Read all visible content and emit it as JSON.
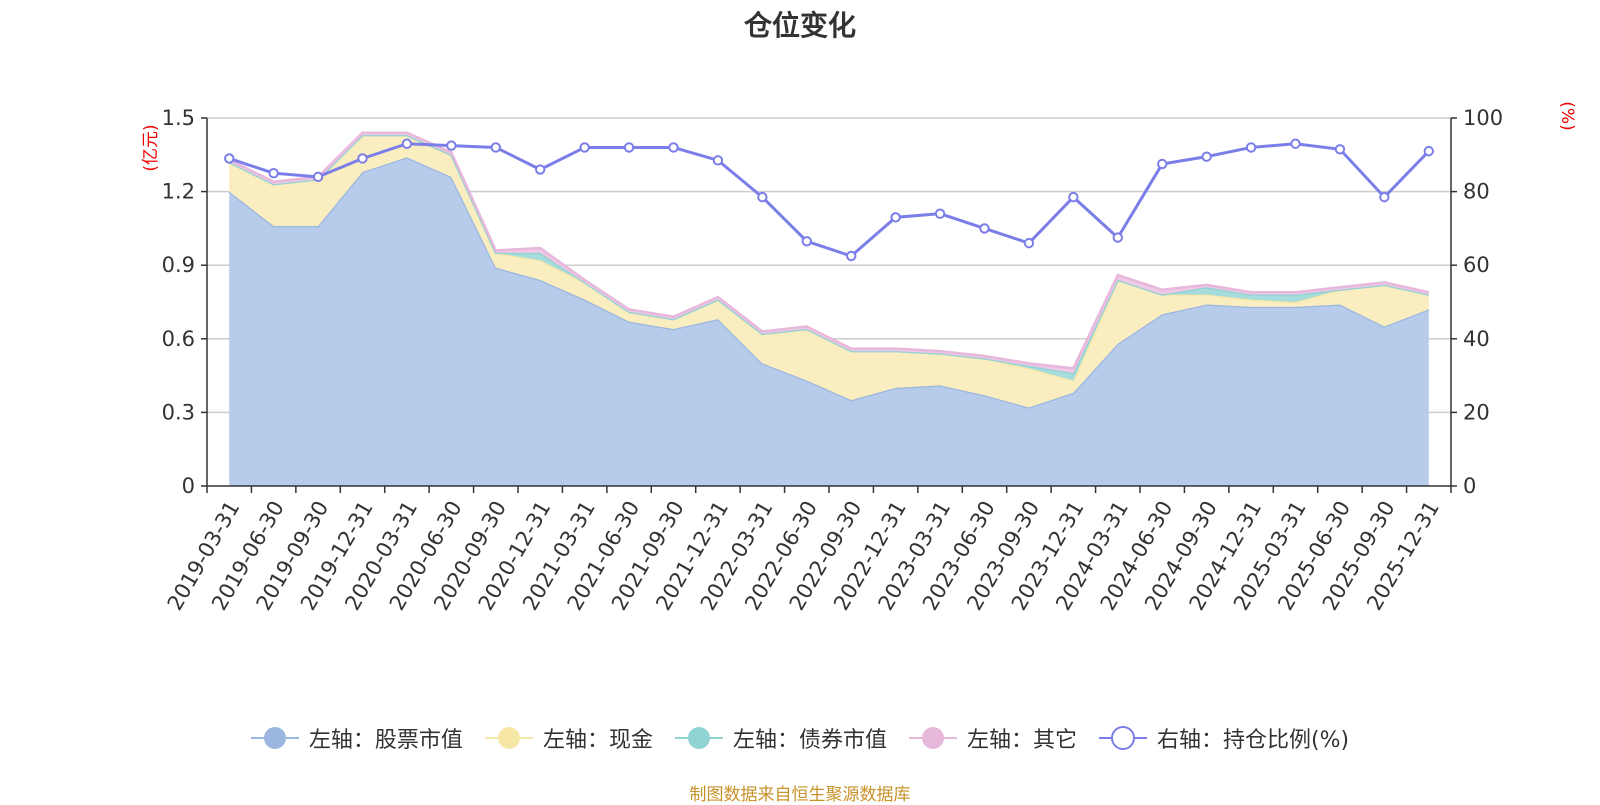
{
  "chart_data": {
    "type": "area",
    "title": "仓位变化",
    "source_note": "制图数据来自恒生聚源数据库",
    "left_axis": {
      "unit": "(亿元)",
      "min": 0,
      "max": 1.5,
      "ticks": [
        "0",
        "0.3",
        "0.6",
        "0.9",
        "1.2",
        "1.5"
      ]
    },
    "right_axis": {
      "unit": "(%)",
      "min": 0,
      "max": 100,
      "ticks": [
        "0",
        "20",
        "40",
        "60",
        "80",
        "100"
      ]
    },
    "grid": true,
    "legend_position": "bottom",
    "x": [
      "2019-03-31",
      "2019-06-30",
      "2019-09-30",
      "2019-12-31",
      "2020-03-31",
      "2020-06-30",
      "2020-09-30",
      "2020-12-31",
      "2021-03-31",
      "2021-06-30",
      "2021-09-30",
      "2021-12-31",
      "2022-03-31",
      "2022-06-30",
      "2022-09-30",
      "2022-12-31",
      "2023-03-31",
      "2023-06-30",
      "2023-09-30",
      "2023-12-31",
      "2024-03-31",
      "2024-06-30",
      "2024-09-30",
      "2024-12-31",
      "2025-03-31",
      "2025-06-30",
      "2025-09-30",
      "2025-12-31"
    ],
    "series": [
      {
        "name": "左轴：股票市值",
        "axis": "left",
        "kind": "stacked-area",
        "color": "#9bb7e0",
        "fill": "#b7cbea",
        "values": [
          1.2,
          1.06,
          1.06,
          1.28,
          1.34,
          1.26,
          0.89,
          0.84,
          0.76,
          0.67,
          0.64,
          0.68,
          0.5,
          0.43,
          0.35,
          0.4,
          0.41,
          0.37,
          0.32,
          0.38,
          0.58,
          0.7,
          0.74,
          0.73,
          0.73,
          0.74,
          0.65,
          0.72
        ]
      },
      {
        "name": "左轴：现金",
        "axis": "left",
        "kind": "stacked-area",
        "color": "#f7e7a6",
        "fill": "#faedbf",
        "values": [
          0.12,
          0.17,
          0.19,
          0.15,
          0.09,
          0.09,
          0.06,
          0.08,
          0.07,
          0.04,
          0.04,
          0.08,
          0.12,
          0.21,
          0.2,
          0.15,
          0.13,
          0.15,
          0.16,
          0.05,
          0.26,
          0.08,
          0.04,
          0.03,
          0.02,
          0.06,
          0.17,
          0.06
        ]
      },
      {
        "name": "左轴：债券市值",
        "axis": "left",
        "kind": "stacked-area",
        "color": "#8fd3d3",
        "fill": "#a6dcdc",
        "values": [
          0,
          0,
          0,
          0,
          0,
          0,
          0,
          0.03,
          0,
          0,
          0,
          0,
          0,
          0,
          0,
          0,
          0,
          0,
          0.01,
          0.03,
          0,
          0,
          0.03,
          0.02,
          0.03,
          0,
          0,
          0
        ]
      },
      {
        "name": "左轴：其它",
        "axis": "left",
        "kind": "stacked-area",
        "color": "#e7b8dc",
        "fill": "#eec8e4",
        "values": [
          0.01,
          0.01,
          0.01,
          0.01,
          0.01,
          0.01,
          0.01,
          0.02,
          0.01,
          0.01,
          0.01,
          0.01,
          0.01,
          0.01,
          0.01,
          0.01,
          0.01,
          0.01,
          0.01,
          0.02,
          0.02,
          0.02,
          0.01,
          0.01,
          0.01,
          0.01,
          0.01,
          0.01
        ]
      },
      {
        "name": "右轴：持仓比例(%)",
        "axis": "right",
        "kind": "line",
        "color": "#7b7ee8",
        "values": [
          89,
          85,
          84,
          89,
          93,
          92.5,
          92,
          86,
          92,
          92,
          92,
          88.5,
          78.5,
          66.5,
          62.5,
          73,
          74,
          70,
          66,
          78.5,
          67.5,
          87.5,
          89.5,
          92,
          93,
          91.5,
          78.5,
          91
        ]
      }
    ]
  }
}
